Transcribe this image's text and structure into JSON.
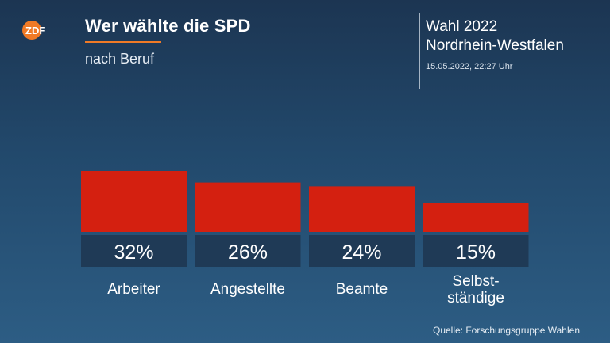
{
  "header": {
    "logo_text": "ZDF",
    "title": "Wer wählte die SPD",
    "subtitle": "nach Beruf",
    "election_line1": "Wahl 2022",
    "election_line2": "Nordrhein-Westfalen",
    "timestamp": "15.05.2022, 22:27 Uhr"
  },
  "colors": {
    "bar": "#d42010",
    "value_box": "#1f3a56",
    "accent": "#f07a26"
  },
  "chart_data": {
    "type": "bar",
    "title": "Wer wählte die SPD",
    "subtitle": "nach Beruf",
    "categories": [
      "Arbeiter",
      "Angestellte",
      "Beamte",
      "Selbst-\nständige"
    ],
    "values": [
      32,
      26,
      24,
      15
    ],
    "value_labels": [
      "32%",
      "26%",
      "24%",
      "15%"
    ],
    "unit": "%",
    "grid": false,
    "legend": "none"
  },
  "footer": {
    "source": "Quelle: Forschungsgruppe Wahlen"
  }
}
